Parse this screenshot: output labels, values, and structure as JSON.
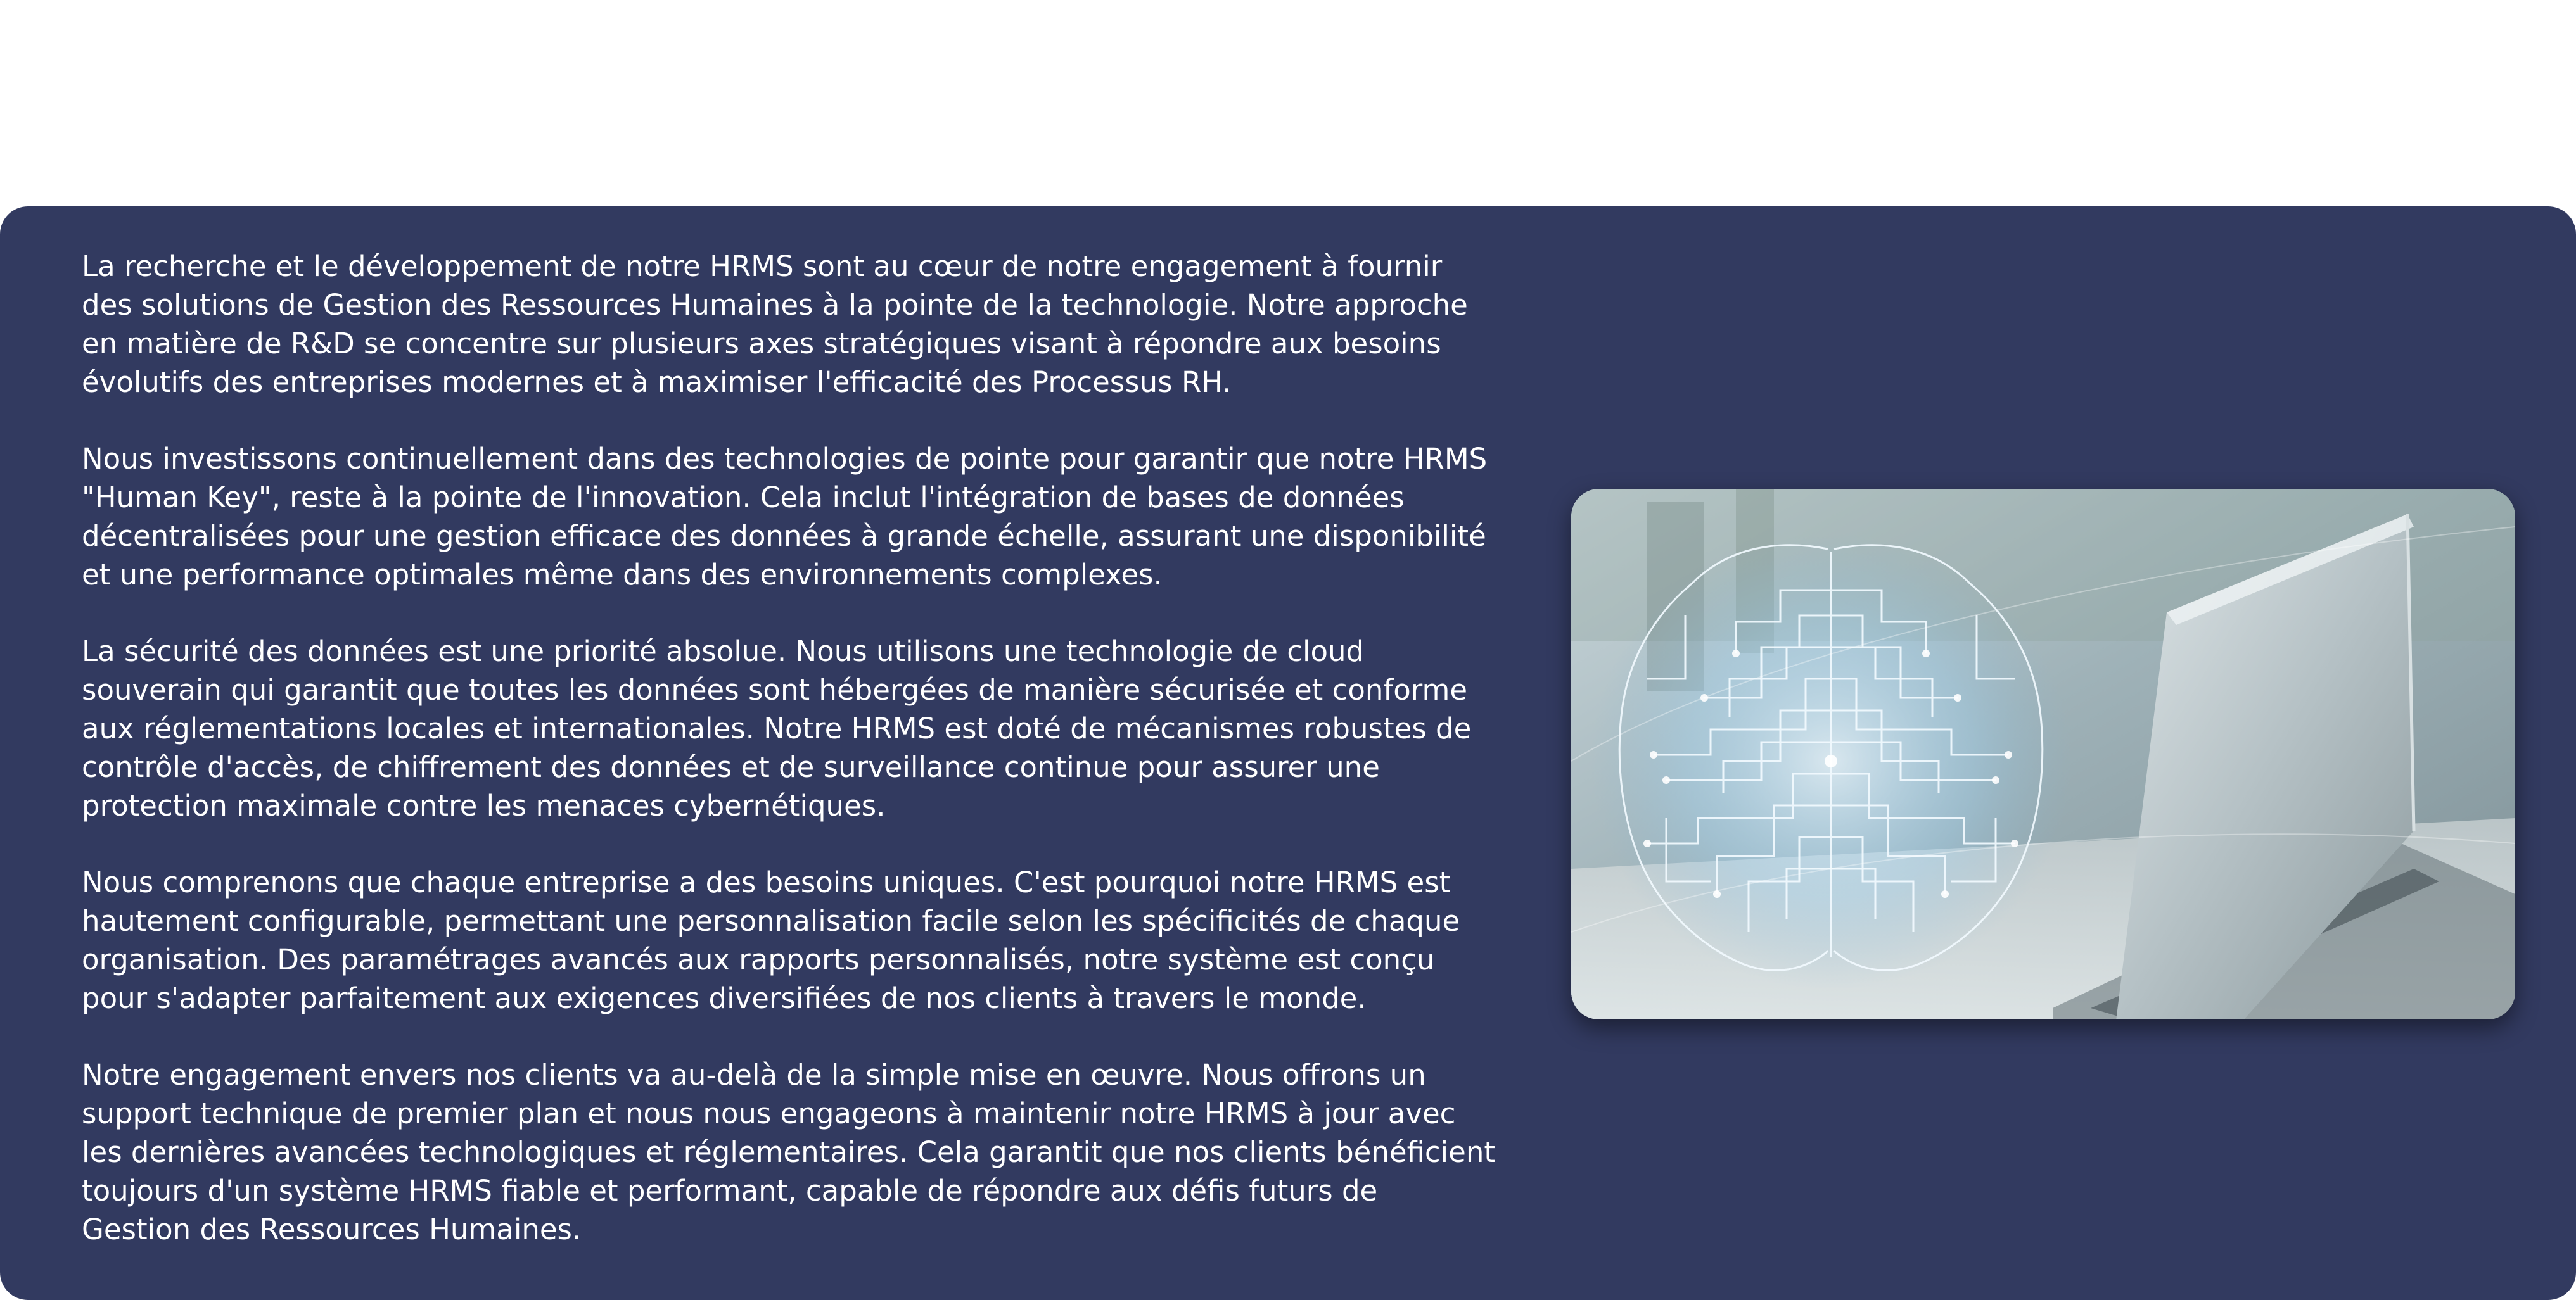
{
  "content": {
    "paragraphs": [
      {
        "lines": [
          "La recherche et le développement de notre HRMS sont au cœur de notre engagement à fournir",
          "des solutions de Gestion des Ressources Humaines à la pointe de la technologie. Notre approche",
          "en matière de R&D se concentre sur plusieurs axes stratégiques visant à répondre aux besoins",
          "évolutifs des entreprises modernes et à maximiser l'efficacité des Processus RH."
        ]
      },
      {
        "lines": [
          "Nous investissons continuellement dans des technologies de pointe pour garantir que notre HRMS",
          "\"Human Key\", reste à la pointe de l'innovation. Cela inclut l'intégration de bases de données",
          "décentralisées pour une gestion efficace des données à grande échelle, assurant une disponibilité",
          "et une performance optimales même dans des environnements complexes."
        ]
      },
      {
        "lines": [
          "La sécurité des données est une priorité absolue. Nous utilisons une technologie de cloud",
          "souverain qui garantit que toutes les données sont hébergées de manière sécurisée et conforme",
          "aux réglementations locales et internationales. Notre HRMS est doté de mécanismes robustes de",
          "contrôle d'accès, de chiffrement des données et de surveillance continue pour assurer une",
          "protection maximale contre les menaces cybernétiques."
        ]
      },
      {
        "lines": [
          "Nous comprenons que chaque entreprise a des besoins uniques. C'est pourquoi notre HRMS est",
          "hautement configurable, permettant une personnalisation facile selon les spécificités de chaque",
          "organisation. Des paramétrages avancés aux rapports personnalisés, notre système est conçu",
          "pour s'adapter parfaitement aux exigences diversifiées de nos clients à travers le monde."
        ]
      },
      {
        "lines": [
          "Notre engagement envers nos clients va au-delà de la simple mise en œuvre. Nous offrons un",
          "support technique de premier plan et nous nous engageons à maintenir notre HRMS à jour avec",
          "les dernières avancées technologiques et réglementaires. Cela garantit que nos clients bénéficient",
          "toujours d'un système HRMS fiable et performant, capable de répondre aux défis futurs de",
          "Gestion des Ressources Humaines."
        ]
      }
    ]
  },
  "image": {
    "subject": "digital-brain-circuit-over-laptop"
  },
  "colors": {
    "panel_background": "#323a60",
    "text": "#ffffff",
    "page_background": "#ffffff",
    "circuit_glow": "#e8f6ff"
  }
}
